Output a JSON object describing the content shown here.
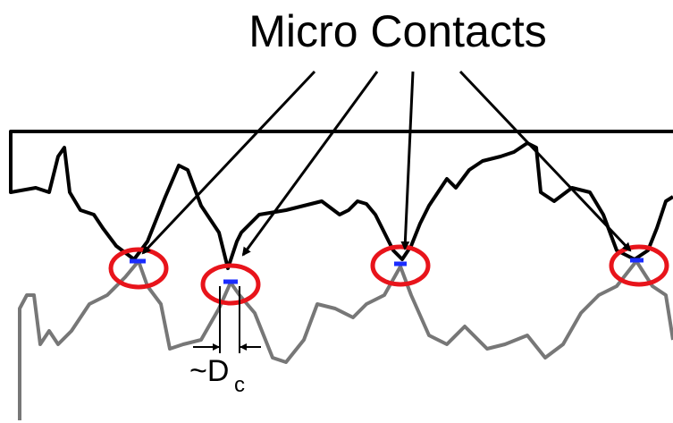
{
  "title": "Micro Contacts",
  "dimension_label": {
    "text": "~D",
    "subscript": "c"
  }
}
